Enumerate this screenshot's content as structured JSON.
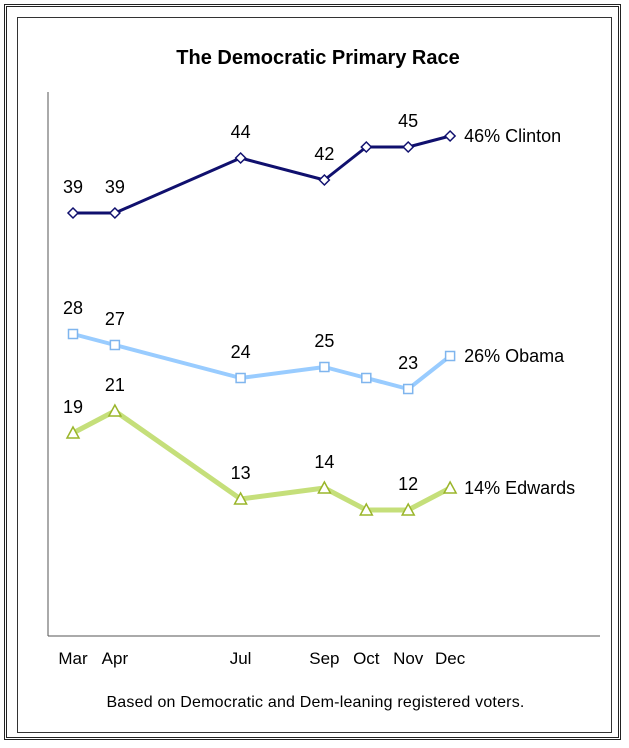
{
  "chart_data": {
    "type": "line",
    "title": "The Democratic Primary Race",
    "categories": [
      "Mar",
      "Apr",
      "Jul",
      "Sep",
      "Oct",
      "Nov",
      "Dec"
    ],
    "x_months": [
      3,
      4,
      7,
      9,
      10,
      11,
      12
    ],
    "xlabel": "",
    "ylabel": "",
    "ylim": [
      0,
      50
    ],
    "grid": false,
    "legend": "end-of-line labels",
    "series": [
      {
        "name": "Clinton",
        "end_label": "46% Clinton",
        "values": [
          39,
          39,
          44,
          42,
          45,
          45,
          46
        ],
        "data_labels": [
          "39",
          "39",
          "44",
          "42",
          "",
          "45",
          ""
        ],
        "color": "#10106e",
        "marker": "diamond"
      },
      {
        "name": "Obama",
        "end_label": "26% Obama",
        "values": [
          28,
          27,
          24,
          25,
          24,
          23,
          26
        ],
        "data_labels": [
          "28",
          "27",
          "24",
          "25",
          "",
          "23",
          ""
        ],
        "color": "#99ccff",
        "marker": "square"
      },
      {
        "name": "Edwards",
        "end_label": "14% Edwards",
        "values": [
          19,
          21,
          13,
          14,
          12,
          12,
          14
        ],
        "data_labels": [
          "19",
          "21",
          "13",
          "14",
          "",
          "12",
          ""
        ],
        "color": "#c5df7a",
        "marker": "triangle"
      }
    ]
  },
  "footnote": "Based on Democratic and Dem-leaning registered voters."
}
